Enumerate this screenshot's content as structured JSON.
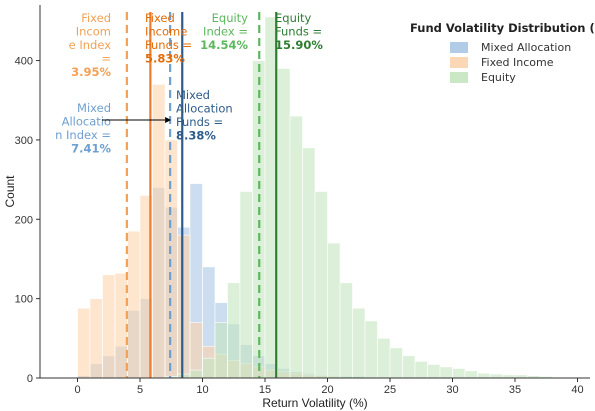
{
  "chart_data": {
    "type": "bar",
    "subtype": "overlapping-histogram",
    "xlabel": "Return Volatility (%)",
    "ylabel": "Count",
    "xlim": [
      -3,
      41
    ],
    "ylim": [
      0,
      470
    ],
    "xticks": [
      0,
      5,
      10,
      15,
      20,
      25,
      30,
      35,
      40
    ],
    "yticks": [
      0,
      100,
      200,
      300,
      400
    ],
    "grid": false,
    "bin_width": 1,
    "legend": {
      "title": "Fund Volatility Distribution (bars)",
      "placement": "top-right"
    },
    "series": [
      {
        "name": "Mixed Allocation",
        "color": "#a9c7e3",
        "bin_starts": [
          0,
          1,
          2,
          3,
          4,
          5,
          6,
          7,
          8,
          9,
          10,
          11,
          12,
          13,
          14,
          15,
          16,
          17,
          18,
          19,
          20,
          21,
          22,
          23,
          24,
          25
        ],
        "values": [
          3,
          18,
          28,
          40,
          85,
          100,
          240,
          215,
          190,
          245,
          140,
          95,
          68,
          42,
          28,
          18,
          12,
          8,
          6,
          4,
          3,
          2,
          2,
          1,
          1,
          1
        ]
      },
      {
        "name": "Fixed Income",
        "color": "#fcd3ae",
        "bin_starts": [
          0,
          1,
          2,
          3,
          4,
          5,
          6,
          7,
          8,
          9,
          10,
          11,
          12,
          13,
          14,
          15,
          16,
          17,
          18,
          19,
          20
        ],
        "values": [
          88,
          100,
          130,
          132,
          185,
          230,
          370,
          300,
          180,
          70,
          40,
          30,
          22,
          18,
          14,
          10,
          8,
          6,
          4,
          3,
          2
        ]
      },
      {
        "name": "Equity",
        "color": "#c4e6c0",
        "bin_starts": [
          7,
          8,
          9,
          10,
          11,
          12,
          13,
          14,
          15,
          16,
          17,
          18,
          19,
          20,
          21,
          22,
          23,
          24,
          25,
          26,
          27,
          28,
          29,
          30,
          31,
          32,
          33,
          34,
          35,
          36,
          37,
          38,
          39
        ],
        "values": [
          2,
          5,
          10,
          25,
          70,
          120,
          235,
          400,
          455,
          390,
          330,
          290,
          235,
          170,
          120,
          88,
          72,
          50,
          38,
          28,
          21,
          17,
          14,
          12,
          9,
          6,
          5,
          4,
          4,
          3,
          2,
          1,
          1
        ]
      }
    ],
    "reference_lines": [
      {
        "group": "Fixed Income",
        "style": "dashed",
        "value": 3.95,
        "label_lines": [
          "Fixed",
          "Incom",
          "e Index",
          "="
        ],
        "value_label": "3.95%",
        "color": "#f2a155",
        "text_color": "#f2a155"
      },
      {
        "group": "Fixed Income",
        "style": "solid",
        "value": 5.83,
        "label_lines": [
          "Fixed",
          "Income",
          "Funds ="
        ],
        "value_label": "5.83%",
        "color": "#ed7d31",
        "text_color": "#e36c0a"
      },
      {
        "group": "Mixed Allocation",
        "style": "dashed",
        "value": 7.41,
        "label_lines": [
          "Mixed",
          "Allocatio",
          "n Index ="
        ],
        "value_label": "7.41%",
        "color": "#6fa0cf",
        "text_color": "#6fa0cf"
      },
      {
        "group": "Mixed Allocation",
        "style": "solid",
        "value": 8.38,
        "label_lines": [
          "Mixed",
          "Allocation",
          "Funds ="
        ],
        "value_label": "8.38%",
        "color": "#2e5c8a",
        "text_color": "#2e5c8a"
      },
      {
        "group": "Equity",
        "style": "dashed",
        "value": 14.54,
        "label_lines": [
          "Equity",
          "Index ="
        ],
        "value_label": "14.54%",
        "color": "#5cb85c",
        "text_color": "#5cb85c"
      },
      {
        "group": "Equity",
        "style": "solid",
        "value": 15.9,
        "label_lines": [
          "Equity",
          "Funds ="
        ],
        "value_label": "15.90%",
        "color": "#2e7d32",
        "text_color": "#2e7d32"
      }
    ]
  }
}
